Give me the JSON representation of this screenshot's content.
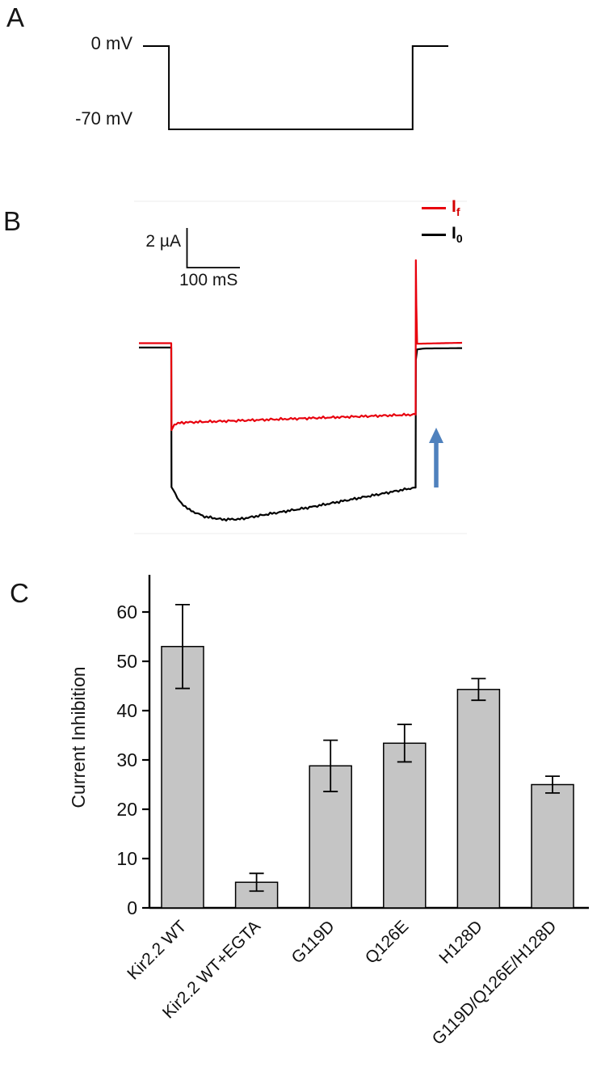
{
  "panel_a": {
    "label": "A",
    "levels": {
      "top": "0 mV",
      "bottom": "-70 mV"
    },
    "trace_color": "#000000"
  },
  "panel_b": {
    "label": "B",
    "scale": {
      "vertical": "2 µA",
      "horizontal": "100 mS"
    },
    "legend": [
      {
        "base": "I",
        "sub": "f",
        "color": "#e8000d",
        "text_color": "#d40000"
      },
      {
        "base": "I",
        "sub": "0",
        "color": "#000000",
        "text_color": "#000000"
      }
    ],
    "arrow": {
      "direction": "up",
      "color": "#4f81bd"
    }
  },
  "panel_c": {
    "label": "C",
    "ylabel": "Current Inhibition"
  },
  "chart_data": [
    {
      "type": "line",
      "name": "voltage-protocol",
      "panel": "A",
      "ylabel_top": "0 mV",
      "ylabel_bottom": "-70 mV",
      "units": "mV",
      "x": [
        0,
        0.085,
        0.085,
        0.883,
        0.883,
        1.0
      ],
      "y": [
        0,
        0,
        -70,
        -70,
        0,
        0
      ],
      "line_color": "#000000"
    },
    {
      "type": "line",
      "name": "current-traces",
      "panel": "B",
      "x_units": "ms",
      "y_units": "µA",
      "scale_bar": {
        "vertical": "2 µA",
        "horizontal": "100 mS"
      },
      "annotation": {
        "type": "up-arrow",
        "color": "#4f81bd"
      },
      "series": [
        {
          "name": "If",
          "color": "#e8000d",
          "points": [
            [
              0,
              -0.02
            ],
            [
              64,
              -0.02
            ],
            [
              64.5,
              -4.6
            ],
            [
              70,
              -4.3
            ],
            [
              85,
              -4.2
            ],
            [
              545,
              -3.78
            ],
            [
              548,
              -3.78
            ],
            [
              548.5,
              4.35
            ],
            [
              549.5,
              2.0
            ],
            [
              551,
              -0.05
            ],
            [
              640,
              0
            ]
          ]
        },
        {
          "name": "I0",
          "color": "#000000",
          "points": [
            [
              0,
              -0.25
            ],
            [
              64,
              -0.25
            ],
            [
              64.5,
              -7.6
            ],
            [
              68,
              -7.75
            ],
            [
              80,
              -8.35
            ],
            [
              100,
              -8.8
            ],
            [
              130,
              -9.15
            ],
            [
              165,
              -9.3
            ],
            [
              200,
              -9.28
            ],
            [
              260,
              -9.0
            ],
            [
              330,
              -8.7
            ],
            [
              400,
              -8.35
            ],
            [
              470,
              -8.0
            ],
            [
              530,
              -7.7
            ],
            [
              548,
              -7.62
            ],
            [
              548.5,
              -0.9
            ],
            [
              551,
              -0.35
            ],
            [
              565,
              -0.3
            ],
            [
              640,
              -0.28
            ]
          ]
        }
      ]
    },
    {
      "type": "bar",
      "name": "current-inhibition",
      "panel": "C",
      "title": "",
      "xlabel": "",
      "ylabel": "Current Inhibition",
      "categories": [
        "Kir2.2 WT",
        "Kir2.2 WT+EGTA",
        "G119D",
        "Q126E",
        "H128D",
        "G119D/Q126E/H128D"
      ],
      "values": [
        53,
        5.2,
        28.8,
        33.4,
        44.3,
        25
      ],
      "errors": [
        8.5,
        1.8,
        5.2,
        3.8,
        2.2,
        1.7
      ],
      "yticks": [
        0,
        10,
        20,
        30,
        40,
        50,
        60
      ],
      "ylim": [
        0,
        67
      ],
      "grid": false,
      "bar_color": "#c5c5c5",
      "bar_edge_color": "#000000"
    }
  ]
}
